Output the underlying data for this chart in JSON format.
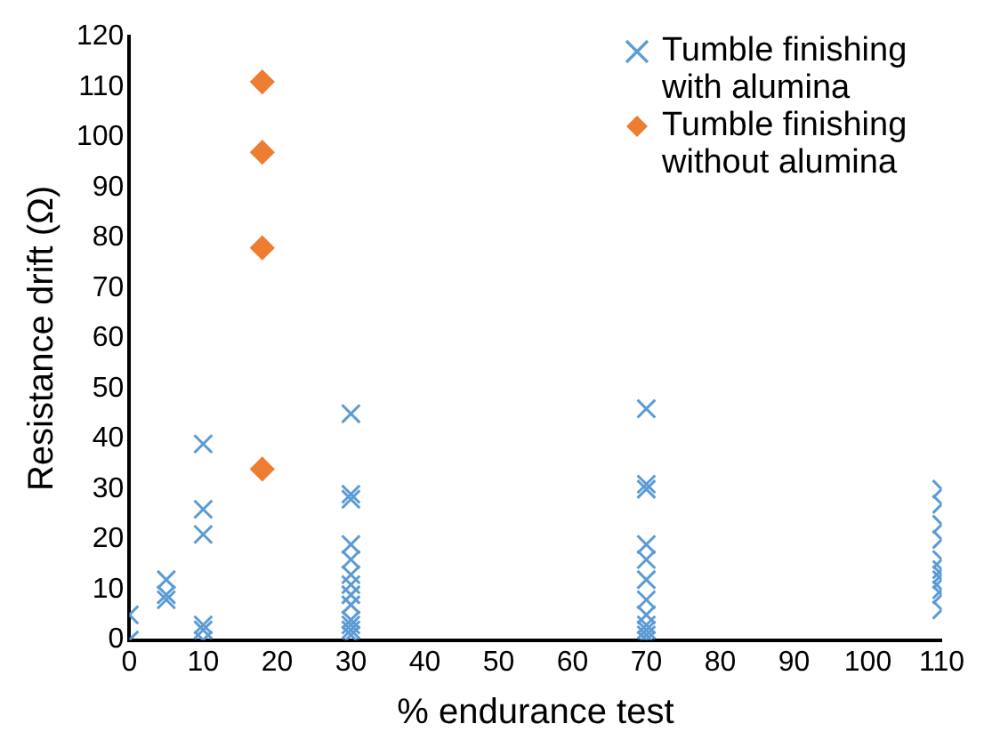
{
  "chart_data": {
    "type": "scatter",
    "xlabel": "% endurance test",
    "ylabel": "Resistance drift (Ω)",
    "xlim": [
      0,
      110
    ],
    "xticks": [
      0,
      10,
      20,
      30,
      40,
      50,
      60,
      70,
      80,
      90,
      100,
      110
    ],
    "ylim": [
      0,
      120
    ],
    "yticks": [
      0,
      10,
      20,
      30,
      40,
      50,
      60,
      70,
      80,
      90,
      100,
      110,
      120
    ],
    "grid": false,
    "legend": "top right",
    "series": [
      {
        "name": "Tumble finishing with alumina",
        "color": "#5b9bd5",
        "marker": "cross",
        "x": [
          0,
          0,
          5,
          5,
          5,
          10,
          10,
          10,
          10,
          10,
          10,
          30,
          30,
          30,
          30,
          30,
          30,
          30,
          30,
          30,
          30,
          30,
          30,
          30,
          70,
          70,
          70,
          70,
          70,
          70,
          70,
          70,
          70,
          70,
          70,
          70,
          110,
          110,
          110,
          110,
          110,
          110,
          110,
          110,
          110,
          110,
          110
        ],
        "values": [
          5,
          0,
          12,
          9,
          8,
          39,
          26,
          21,
          3,
          2,
          0,
          45,
          29,
          28,
          19,
          16,
          13,
          11,
          9,
          7,
          4,
          3,
          2,
          1,
          46,
          31,
          30,
          19,
          16,
          12,
          8,
          5,
          3,
          2,
          1,
          0,
          30,
          27,
          23,
          20,
          16,
          14,
          13,
          12,
          10,
          9,
          6
        ]
      },
      {
        "name": "Tumble finishing without alumina",
        "color": "#ed7d31",
        "marker": "diamond",
        "x": [
          18,
          18,
          18,
          18
        ],
        "values": [
          111,
          97,
          78,
          34
        ]
      }
    ]
  }
}
